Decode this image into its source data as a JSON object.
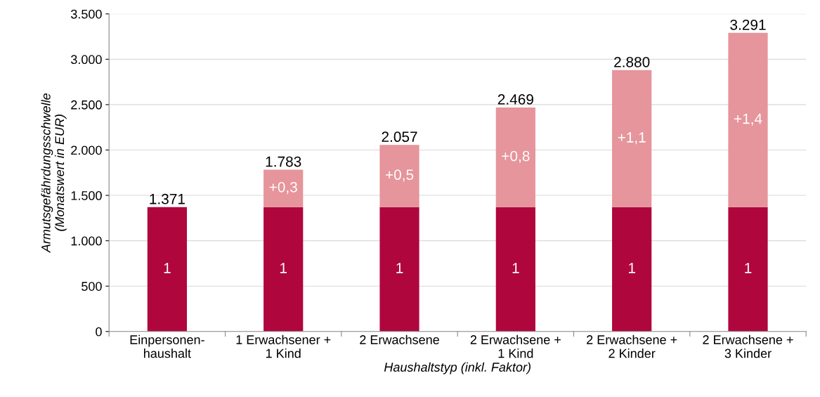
{
  "chart_data": {
    "type": "bar",
    "stacked": true,
    "categories": [
      "Einpersonen-\nhaushalt",
      "1 Erwachsener +\n1 Kind",
      "2 Erwachsene",
      "2 Erwachsene +\n1 Kind",
      "2 Erwachsene +\n2 Kinder",
      "2 Erwachsene +\n3 Kinder"
    ],
    "series": [
      {
        "color": "#b0063e",
        "values": [
          1371,
          1371,
          1371,
          1371,
          1371,
          1371
        ]
      },
      {
        "color": "#e5959b",
        "values": [
          null,
          412,
          686,
          1098,
          1509,
          1920
        ]
      }
    ],
    "annotations": [
      "1",
      "1",
      "1",
      "1",
      "1",
      "1",
      "+0,3",
      "+0,5",
      "+0,8",
      "+1,1",
      "+1,4"
    ],
    "totals": [
      "1.371",
      "1.783",
      "2.057",
      "2.469",
      "2.880",
      "3.291"
    ],
    "xlabel": "Haushaltstyp (inkl. Faktor)",
    "ylabel": "Armutsgefährdungsschwelle\n(Monatswert in EUR)",
    "ylim": [
      0,
      3500
    ],
    "yticks": [
      0,
      500,
      {
        "value": 1000,
        "label": "1.000"
      },
      {
        "value": 1500,
        "label": "1.500"
      },
      {
        "value": 2000,
        "label": "2.000"
      },
      {
        "value": 2500,
        "label": "2.500"
      },
      {
        "value": 3000,
        "label": "3.000"
      },
      {
        "value": 3500,
        "label": "3.500"
      }
    ],
    "grid": "y",
    "legend": false
  }
}
